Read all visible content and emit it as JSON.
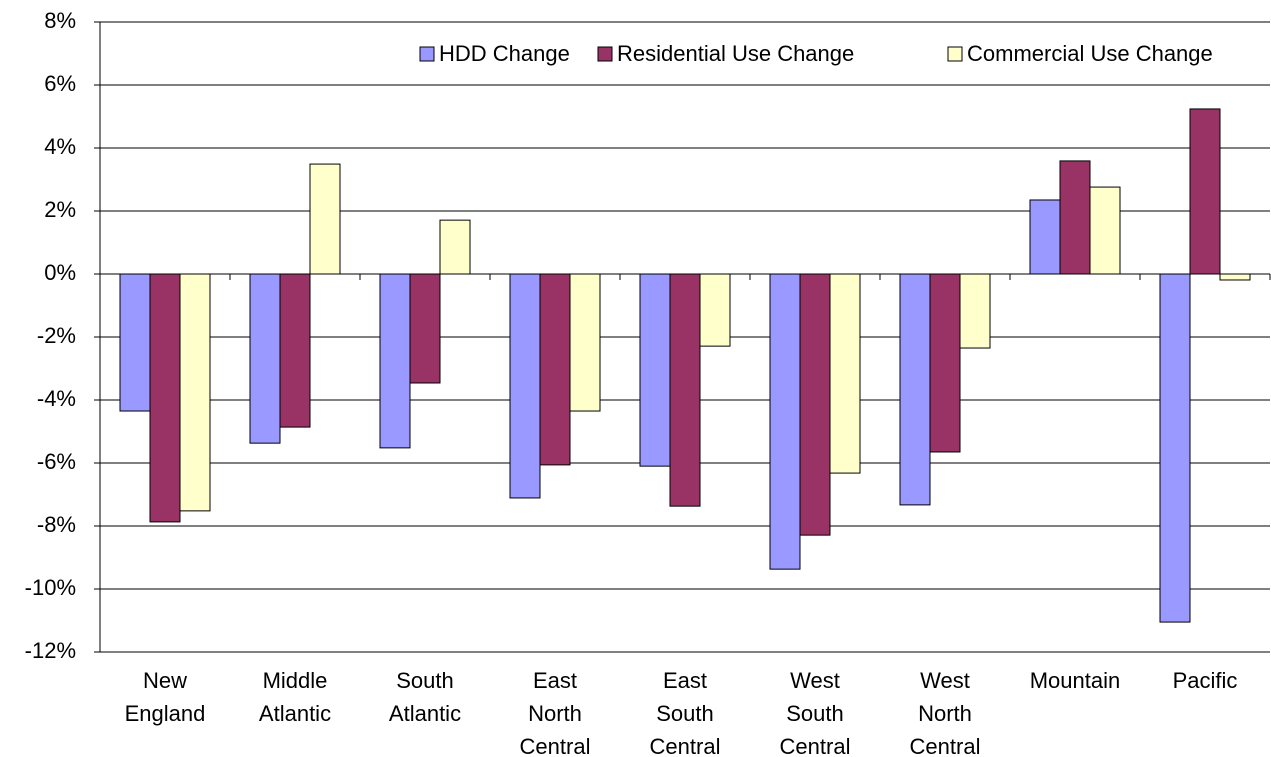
{
  "chart_data": {
    "type": "bar",
    "categories": [
      [
        "New",
        "England"
      ],
      [
        "Middle",
        "Atlantic"
      ],
      [
        "South",
        "Atlantic"
      ],
      [
        "East",
        "North",
        "Central"
      ],
      [
        "East",
        "South",
        "Central"
      ],
      [
        "West",
        "South",
        "Central"
      ],
      [
        "West",
        "North",
        "Central"
      ],
      [
        "Mountain"
      ],
      [
        "Pacific"
      ]
    ],
    "series": [
      {
        "name": "HDD Change",
        "color": "#9999ff",
        "values": [
          -4.35,
          -5.37,
          -5.52,
          -7.11,
          -6.1,
          -9.37,
          -7.33,
          2.35,
          -11.05
        ]
      },
      {
        "name": "Residential Use Change",
        "color": "#993366",
        "values": [
          -7.87,
          -4.86,
          -3.46,
          -6.06,
          -7.37,
          -8.29,
          -5.65,
          3.59,
          5.24
        ]
      },
      {
        "name": "Commercial Use Change",
        "color": "#ffffcc",
        "values": [
          -7.52,
          3.49,
          1.71,
          -4.35,
          -2.29,
          -6.32,
          -2.35,
          2.76,
          -0.19
        ]
      }
    ],
    "ylim": [
      -12,
      8
    ],
    "yticks": [
      {
        "value": -12,
        "label": "-12%"
      },
      {
        "value": -10,
        "label": "-10%"
      },
      {
        "value": -8,
        "label": "-8%"
      },
      {
        "value": -6,
        "label": "-6%"
      },
      {
        "value": -4,
        "label": "-4%"
      },
      {
        "value": -2,
        "label": "-2%"
      },
      {
        "value": 0,
        "label": "0%"
      },
      {
        "value": 2,
        "label": "2%"
      },
      {
        "value": 4,
        "label": "4%"
      },
      {
        "value": 6,
        "label": "6%"
      },
      {
        "value": 8,
        "label": "8%"
      }
    ],
    "grid": true,
    "legend": "top-right"
  }
}
